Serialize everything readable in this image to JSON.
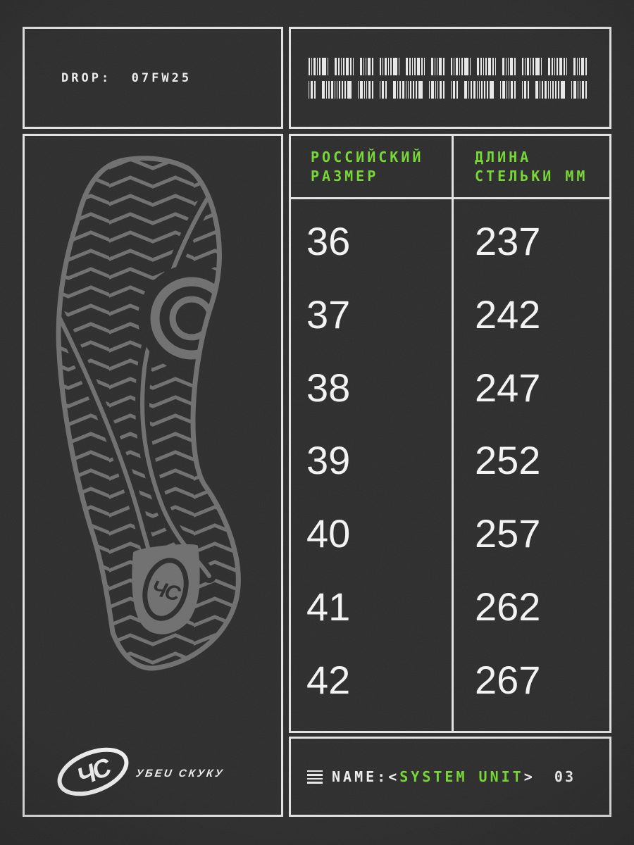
{
  "header": {
    "drop_label": "DROP:  07FW25"
  },
  "barcode": {
    "row_patterns": [
      "2131261032124210311420213126103212421031142021312610321242103114202131261032124210311420",
      "1320412311222601411320132041231122260141132013204123112226014113201320412311222601411320"
    ]
  },
  "size_table": {
    "columns": [
      {
        "header_line1": "РОССИЙСКИЙ",
        "header_line2": "РАЗМЕР"
      },
      {
        "header_line1": "ДЛИНА",
        "header_line2": "СТЕЛЬКИ ММ"
      }
    ],
    "rows": [
      {
        "ru_size": "36",
        "insole_mm": "237"
      },
      {
        "ru_size": "37",
        "insole_mm": "242"
      },
      {
        "ru_size": "38",
        "insole_mm": "247"
      },
      {
        "ru_size": "39",
        "insole_mm": "252"
      },
      {
        "ru_size": "40",
        "insole_mm": "257"
      },
      {
        "ru_size": "41",
        "insole_mm": "262"
      },
      {
        "ru_size": "42",
        "insole_mm": "267"
      }
    ]
  },
  "brand": {
    "monogram": "ЧС",
    "wordmark": "УБЕU СКУКУ"
  },
  "name_bar": {
    "menu_icon": "justify-lines-icon",
    "label": "NAME:",
    "bracket_open": "<",
    "value": "SYSTEM UNIT",
    "bracket_close": ">",
    "index": "03"
  },
  "colors": {
    "background": "#2c2c2c",
    "frame_white": "#e4e4e4",
    "accent_green": "#74d931",
    "sole_gray": "#6f6f6f",
    "text_white": "#efefef"
  }
}
